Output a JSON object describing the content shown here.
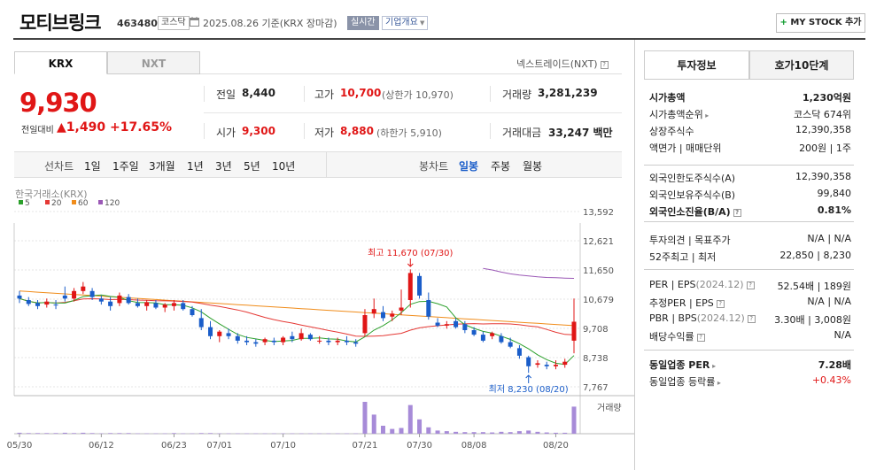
{
  "header": {
    "name": "모티브링크",
    "code": "463480",
    "market": "코스닥",
    "date": "2025.08.26",
    "basis": "기준(KRX 장마감)",
    "realtime": "실시간",
    "corp_info": "기업개요",
    "mystock": "MY STOCK 추가"
  },
  "exchange_tabs": [
    "KRX",
    "NXT"
  ],
  "nxt_link": "넥스트레이드(NXT)",
  "quote": {
    "price": "9,930",
    "change_label": "전일대비",
    "change_amount": "1,490",
    "change_pct": "+17.65%",
    "prev_close_label": "전일",
    "prev_close": "8,440",
    "high_label": "고가",
    "high": "10,700",
    "upper_limit": "(상한가 10,970)",
    "volume_label": "거래량",
    "volume": "3,281,239",
    "open_label": "시가",
    "open": "9,300",
    "low_label": "저가",
    "low": "8,880",
    "lower_limit": "(하한가 5,910)",
    "amount_label": "거래대금",
    "amount": "33,247 백만"
  },
  "period_bar": {
    "line_label": "선차트",
    "line_periods": [
      "1일",
      "1주일",
      "3개월",
      "1년",
      "3년",
      "5년",
      "10년"
    ],
    "candle_label": "봉차트",
    "candle_periods": [
      "일봉",
      "주봉",
      "월봉"
    ],
    "selected": "일봉"
  },
  "chart_source": "한국거래소(KRX)",
  "chart_data": {
    "type": "candlestick",
    "legend": [
      {
        "name": "5",
        "color": "#2ca02c"
      },
      {
        "name": "20",
        "color": "#e53935"
      },
      {
        "name": "60",
        "color": "#f08c1a"
      },
      {
        "name": "120",
        "color": "#9b59b6"
      }
    ],
    "y_ticks": [
      "13,592",
      "12,621",
      "11,650",
      "10,679",
      "9,708",
      "8,738",
      "7,767"
    ],
    "ylim": [
      7767,
      13592
    ],
    "x_ticks": [
      "05/30",
      "06/12",
      "06/23",
      "07/01",
      "07/10",
      "07/21",
      "07/30",
      "08/08",
      "08/20"
    ],
    "volume_label": "거래량",
    "high_annotation": "최고 11,670 (07/30)",
    "low_annotation": "최저 8,230 (08/20)",
    "candles": [
      [
        10800,
        10950,
        10550,
        10700
      ],
      [
        10650,
        10750,
        10450,
        10520
      ],
      [
        10550,
        10650,
        10350,
        10450
      ],
      [
        10500,
        10700,
        10400,
        10600
      ],
      [
        10500,
        10650,
        10350,
        10480
      ],
      [
        10800,
        11100,
        10600,
        10700
      ],
      [
        10700,
        11050,
        10600,
        10950
      ],
      [
        10950,
        11250,
        10850,
        11100
      ],
      [
        10950,
        11050,
        10650,
        10750
      ],
      [
        10700,
        10800,
        10500,
        10600
      ],
      [
        10600,
        10750,
        10300,
        10450
      ],
      [
        10550,
        10900,
        10450,
        10800
      ],
      [
        10750,
        10850,
        10500,
        10550
      ],
      [
        10550,
        10700,
        10400,
        10450
      ],
      [
        10450,
        10650,
        10300,
        10580
      ],
      [
        10550,
        10650,
        10350,
        10400
      ],
      [
        10400,
        10550,
        10250,
        10500
      ],
      [
        10450,
        10650,
        10300,
        10550
      ],
      [
        10550,
        10650,
        10300,
        10350
      ],
      [
        10350,
        10450,
        10100,
        10150
      ],
      [
        10050,
        10350,
        9650,
        9750
      ],
      [
        9750,
        9950,
        9350,
        9450
      ],
      [
        9450,
        9650,
        9250,
        9600
      ],
      [
        9550,
        9700,
        9350,
        9450
      ],
      [
        9450,
        9550,
        9200,
        9300
      ],
      [
        9300,
        9450,
        9150,
        9250
      ],
      [
        9250,
        9350,
        9100,
        9200
      ],
      [
        9250,
        9400,
        9150,
        9350
      ],
      [
        9300,
        9400,
        9150,
        9250
      ],
      [
        9250,
        9450,
        9150,
        9400
      ],
      [
        9450,
        9600,
        9250,
        9350
      ],
      [
        9350,
        9700,
        9300,
        9550
      ],
      [
        9500,
        9550,
        9300,
        9350
      ],
      [
        9300,
        9450,
        9200,
        9300
      ],
      [
        9300,
        9400,
        9150,
        9250
      ],
      [
        9250,
        9400,
        9150,
        9300
      ],
      [
        9300,
        9450,
        9150,
        9250
      ],
      [
        9250,
        9350,
        9100,
        9200
      ],
      [
        9550,
        10350,
        9450,
        10150
      ],
      [
        10200,
        10700,
        10050,
        10350
      ],
      [
        10250,
        10450,
        9950,
        10050
      ],
      [
        10100,
        10300,
        9950,
        10200
      ],
      [
        10300,
        11000,
        10150,
        10400
      ],
      [
        10650,
        11670,
        10400,
        11550
      ],
      [
        11450,
        11550,
        10700,
        10800
      ],
      [
        10650,
        10900,
        10000,
        10100
      ],
      [
        9900,
        10050,
        9750,
        9800
      ],
      [
        9800,
        9950,
        9700,
        9850
      ],
      [
        9950,
        10050,
        9700,
        9750
      ],
      [
        9850,
        9950,
        9550,
        9650
      ],
      [
        9650,
        9750,
        9450,
        9500
      ],
      [
        9500,
        9600,
        9250,
        9300
      ],
      [
        9450,
        9600,
        9350,
        9550
      ],
      [
        9450,
        9550,
        9200,
        9250
      ],
      [
        9250,
        9400,
        9050,
        9100
      ],
      [
        9050,
        9150,
        8700,
        8800
      ],
      [
        8750,
        8800,
        8230,
        8450
      ],
      [
        8500,
        8650,
        8400,
        8550
      ],
      [
        8500,
        8600,
        8350,
        8450
      ],
      [
        8450,
        8650,
        8350,
        8500
      ],
      [
        8500,
        8700,
        8400,
        8600
      ],
      [
        9300,
        10700,
        8880,
        9930
      ]
    ],
    "volumes": [
      3,
      2,
      2,
      2,
      2,
      3,
      2,
      3,
      2,
      1,
      2,
      2,
      2,
      1,
      1,
      1,
      1,
      2,
      1,
      1,
      2,
      2,
      1,
      1,
      1,
      1,
      1,
      1,
      1,
      1,
      1,
      1,
      1,
      1,
      1,
      1,
      1,
      1,
      100,
      60,
      25,
      15,
      18,
      90,
      45,
      20,
      10,
      8,
      6,
      5,
      5,
      5,
      4,
      6,
      5,
      8,
      10,
      6,
      4,
      3,
      3,
      85
    ],
    "ma120": [
      null,
      null,
      null,
      null,
      null,
      null,
      null,
      null,
      null,
      null,
      null,
      null,
      null,
      null,
      null,
      null,
      null,
      null,
      null,
      null,
      null,
      null,
      null,
      null,
      null,
      null,
      null,
      null,
      null,
      null,
      null,
      null,
      null,
      null,
      null,
      null,
      null,
      null,
      null,
      null,
      null,
      null,
      null,
      null,
      null,
      null,
      null,
      null,
      null,
      null,
      null,
      11700,
      11650,
      11580,
      11520,
      11480,
      11450,
      11420,
      11400,
      11390,
      11380,
      11370
    ]
  },
  "invest_tabs": [
    "투자정보",
    "호가10단계"
  ],
  "invest_info": {
    "group1": [
      {
        "label": "시가총액",
        "value": "1,230억원",
        "bold": true
      },
      {
        "label": "시가총액순위",
        "value": "코스닥 674위",
        "arrow": true
      },
      {
        "label": "상장주식수",
        "value": "12,390,358"
      },
      {
        "label": "액면가 | 매매단위",
        "value": "200원 | 1주"
      }
    ],
    "group2": [
      {
        "label": "외국인한도주식수(A)",
        "value": "12,390,358"
      },
      {
        "label": "외국인보유주식수(B)",
        "value": "99,840"
      },
      {
        "label": "외국인소진율(B/A)",
        "value": "0.81%",
        "bold": true,
        "q": true
      }
    ],
    "group3": [
      {
        "label": "투자의견 | 목표주가",
        "value": "N/A | N/A"
      },
      {
        "label": "52주최고 | 최저",
        "value": "22,850 | 8,230"
      }
    ],
    "group4": [
      {
        "label": "PER | EPS",
        "sub": "(2024.12)",
        "value": "52.54배 | 189원",
        "q": true
      },
      {
        "label": "추정PER | EPS",
        "value": "N/A | N/A",
        "q": true
      },
      {
        "label": "PBR | BPS",
        "sub": "(2024.12)",
        "value": "3.30배 | 3,008원",
        "q": true
      },
      {
        "label": "배당수익률",
        "value": "N/A",
        "q": true
      }
    ],
    "group5": [
      {
        "label": "동일업종 PER",
        "value": "7.28배",
        "bold": true,
        "arrow": true
      },
      {
        "label": "동일업종 등락률",
        "value": "+0.43%",
        "arrow": true,
        "red": true
      }
    ]
  },
  "colors": {
    "up": "#e01616",
    "down": "#1a5dc9",
    "accent": "#0a9a2a"
  }
}
